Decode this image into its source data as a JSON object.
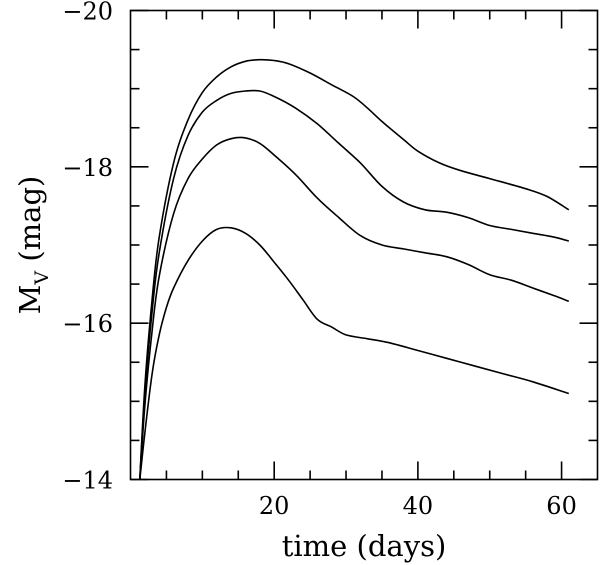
{
  "chart_data": {
    "type": "line",
    "title": "",
    "xlabel": "time (days)",
    "ylabel": {
      "base": "M",
      "sub": "V",
      "rest": " (mag)"
    },
    "xlim": [
      0,
      65
    ],
    "ylim": [
      -14,
      -20
    ],
    "y_reversed": true,
    "x_major_ticks": [
      20,
      40,
      60
    ],
    "x_minor_ticks": [
      5,
      10,
      15,
      25,
      30,
      35,
      45,
      50,
      55
    ],
    "y_major_ticks": [
      -14,
      -16,
      -18,
      -20
    ],
    "y_minor_ticks": [
      -14.5,
      -15,
      -15.5,
      -16.5,
      -17,
      -17.5,
      -18.5,
      -19,
      -19.5
    ],
    "x_tick_labels": [
      "20",
      "40",
      "60"
    ],
    "y_tick_labels": [
      "−14",
      "−16",
      "−18",
      "−20"
    ],
    "grid": false,
    "legend": false,
    "series": [
      {
        "x": [
          1.3,
          2,
          3,
          4,
          6,
          8,
          10,
          12,
          14,
          16,
          18,
          20,
          22,
          25,
          28,
          31,
          33,
          35,
          38,
          40,
          43,
          46,
          50,
          55,
          58,
          61
        ],
        "y": [
          -14.0,
          -15.2,
          -16.3,
          -17.1,
          -18.05,
          -18.6,
          -18.95,
          -19.15,
          -19.28,
          -19.35,
          -19.37,
          -19.36,
          -19.32,
          -19.2,
          -19.05,
          -18.9,
          -18.75,
          -18.58,
          -18.35,
          -18.2,
          -18.05,
          -17.95,
          -17.85,
          -17.72,
          -17.62,
          -17.45
        ]
      },
      {
        "x": [
          1.3,
          2,
          3,
          4,
          6,
          8,
          10,
          12,
          14,
          16,
          18,
          20,
          23,
          26,
          29,
          32,
          35,
          38,
          41,
          44,
          47,
          50,
          53,
          56,
          59,
          61
        ],
        "y": [
          -14.0,
          -15.1,
          -16.15,
          -16.9,
          -17.85,
          -18.4,
          -18.7,
          -18.85,
          -18.94,
          -18.97,
          -18.97,
          -18.9,
          -18.75,
          -18.55,
          -18.3,
          -18.05,
          -17.75,
          -17.55,
          -17.45,
          -17.42,
          -17.35,
          -17.25,
          -17.2,
          -17.15,
          -17.1,
          -17.05
        ]
      },
      {
        "x": [
          1.3,
          2,
          3,
          4,
          6,
          8,
          10,
          12,
          14,
          16,
          18,
          20,
          23,
          26,
          29,
          32,
          35,
          38,
          41,
          44,
          47,
          50,
          53,
          56,
          59,
          61
        ],
        "y": [
          -14.0,
          -14.95,
          -15.9,
          -16.6,
          -17.4,
          -17.85,
          -18.1,
          -18.28,
          -18.36,
          -18.37,
          -18.3,
          -18.15,
          -17.9,
          -17.6,
          -17.35,
          -17.12,
          -17.0,
          -16.95,
          -16.9,
          -16.85,
          -16.75,
          -16.62,
          -16.55,
          -16.45,
          -16.35,
          -16.28
        ]
      },
      {
        "x": [
          1.3,
          2,
          3,
          4,
          5,
          6,
          8,
          10,
          12,
          14,
          16,
          18,
          20,
          22,
          24,
          26,
          28,
          30,
          33,
          36,
          40,
          44,
          48,
          52,
          56,
          61
        ],
        "y": [
          -14.0,
          -14.6,
          -15.35,
          -15.85,
          -16.2,
          -16.45,
          -16.8,
          -17.05,
          -17.2,
          -17.22,
          -17.15,
          -17.0,
          -16.78,
          -16.55,
          -16.3,
          -16.05,
          -15.95,
          -15.85,
          -15.8,
          -15.75,
          -15.65,
          -15.55,
          -15.45,
          -15.35,
          -15.25,
          -15.1
        ]
      }
    ]
  }
}
